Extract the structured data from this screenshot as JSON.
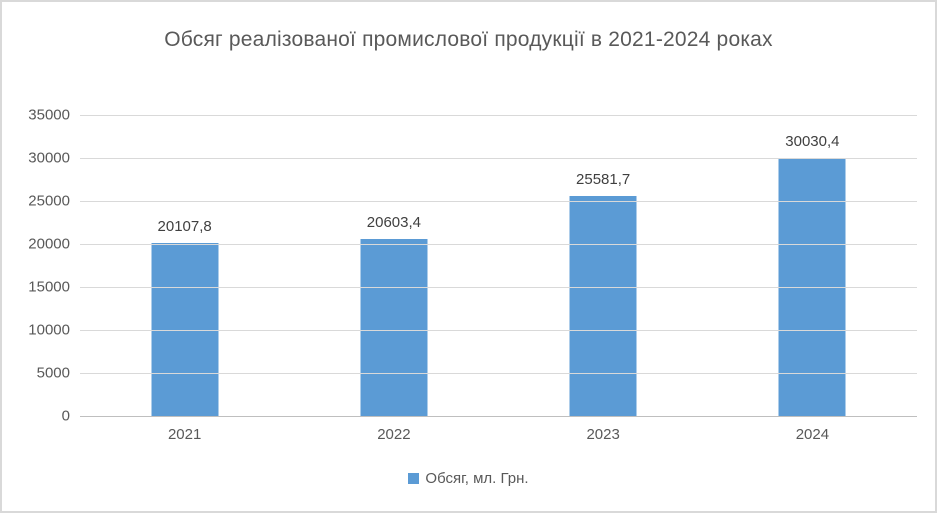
{
  "chart_data": {
    "type": "bar",
    "title": "Обсяг реалізованої промислової продукції в 2021-2024 роках",
    "categories": [
      "2021",
      "2022",
      "2023",
      "2024"
    ],
    "series": [
      {
        "name": "Обсяг, мл. Грн.",
        "values": [
          20107.8,
          20603.4,
          25581.7,
          30030.4
        ],
        "value_labels": [
          "20107,8",
          "20603,4",
          "25581,7",
          "30030,4"
        ],
        "color": "#5b9bd5"
      }
    ],
    "xlabel": "",
    "ylabel": "",
    "ylim": [
      0,
      35000
    ],
    "y_tick_step": 5000,
    "y_tick_labels": [
      "0",
      "5000",
      "10000",
      "15000",
      "20000",
      "25000",
      "30000",
      "35000"
    ],
    "grid": true,
    "gridline_color": "#d9d9d9",
    "axis_line_color": "#bfbfbf",
    "legend_position": "bottom",
    "legend_label": "Обсяг, мл. Грн.",
    "title_color": "#595959",
    "label_color": "#404040",
    "tick_color": "#595959"
  }
}
